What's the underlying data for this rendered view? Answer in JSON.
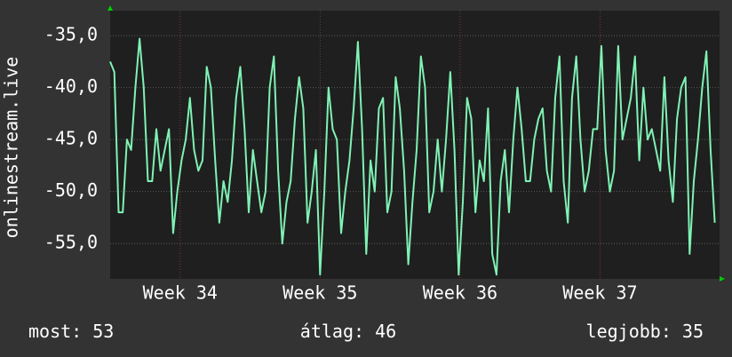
{
  "chart_data": {
    "type": "line",
    "y_label": "onlinestream.live",
    "x": [
      33.5,
      33.53,
      33.56,
      33.59,
      33.62,
      33.65,
      33.68,
      33.71,
      33.74,
      33.77,
      33.8,
      33.83,
      33.86,
      33.89,
      33.92,
      33.95,
      33.98,
      34.01,
      34.04,
      34.07,
      34.1,
      34.13,
      34.16,
      34.19,
      34.22,
      34.25,
      34.28,
      34.31,
      34.34,
      34.37,
      34.4,
      34.43,
      34.46,
      34.49,
      34.52,
      34.55,
      34.58,
      34.61,
      34.64,
      34.67,
      34.7,
      34.73,
      34.76,
      34.79,
      34.82,
      34.85,
      34.88,
      34.91,
      34.94,
      34.97,
      35,
      35.03,
      35.06,
      35.09,
      35.12,
      35.15,
      35.18,
      35.21,
      35.24,
      35.27,
      35.3,
      35.33,
      35.36,
      35.39,
      35.42,
      35.45,
      35.48,
      35.51,
      35.54,
      35.57,
      35.6,
      35.63,
      35.66,
      35.69,
      35.72,
      35.75,
      35.78,
      35.81,
      35.84,
      35.87,
      35.9,
      35.93,
      35.96,
      35.99,
      36.02,
      36.05,
      36.08,
      36.11,
      36.14,
      36.17,
      36.2,
      36.23,
      36.26,
      36.29,
      36.32,
      36.35,
      36.38,
      36.41,
      36.44,
      36.47,
      36.5,
      36.53,
      36.56,
      36.59,
      36.62,
      36.65,
      36.68,
      36.71,
      36.74,
      36.77,
      36.8,
      36.83,
      36.86,
      36.89,
      36.92,
      36.95,
      36.98,
      37.01,
      37.04,
      37.07,
      37.1,
      37.13,
      37.16,
      37.19,
      37.22,
      37.25,
      37.28,
      37.31,
      37.34,
      37.37,
      37.4,
      37.43,
      37.46,
      37.49,
      37.52,
      37.55,
      37.58,
      37.61,
      37.64,
      37.67,
      37.7,
      37.73,
      37.76,
      37.79,
      37.82
    ],
    "series": [
      {
        "color": "#7ff2b4",
        "values": [
          -37.5,
          -38.5,
          -52,
          -52,
          -45,
          -46,
          -40,
          -35.3,
          -40,
          -49,
          -49,
          -44,
          -48,
          -46,
          -44,
          -54,
          -50,
          -47,
          -45,
          -41,
          -46,
          -48,
          -47,
          -38,
          -40,
          -47,
          -53,
          -49,
          -51,
          -47,
          -41,
          -38,
          -44,
          -52,
          -46,
          -49,
          -52,
          -50,
          -40,
          -37,
          -48,
          -55,
          -51,
          -49,
          -43,
          -39,
          -42,
          -53,
          -50,
          -46,
          -58,
          -50,
          -40,
          -44,
          -45,
          -54,
          -50,
          -47,
          -42,
          -35.6,
          -44,
          -56,
          -47,
          -50,
          -42,
          -41,
          -52,
          -50,
          -39,
          -42,
          -48,
          -57,
          -51,
          -46,
          -37,
          -40,
          -52,
          -50,
          -45,
          -50,
          -45,
          -38.5,
          -46,
          -58,
          -51,
          -41,
          -43,
          -52,
          -47,
          -49,
          -42,
          -56,
          -58,
          -49,
          -46,
          -52,
          -45,
          -40,
          -44,
          -49,
          -49,
          -45,
          -43,
          -42,
          -48,
          -50,
          -41,
          -37,
          -49,
          -53,
          -41,
          -37,
          -45,
          -50,
          -48,
          -44,
          -44,
          -36,
          -46,
          -50,
          -48,
          -36,
          -45,
          -43,
          -41,
          -37,
          -47,
          -40,
          -45,
          -44,
          -46,
          -48,
          -39,
          -47,
          -51,
          -43,
          -40,
          -39,
          -56,
          -49,
          -45,
          -40,
          -36.5,
          -46,
          -53
        ]
      }
    ],
    "xlim": [
      33.5,
      37.854
    ],
    "ylim": [
      -58.4,
      -32.6
    ],
    "xticks": [
      {
        "value": 34,
        "label": "Week 34"
      },
      {
        "value": 35,
        "label": "Week 35"
      },
      {
        "value": 36,
        "label": "Week 36"
      },
      {
        "value": 37,
        "label": "Week 37"
      }
    ],
    "yticks": [
      {
        "value": -35,
        "label": "-35,0"
      },
      {
        "value": -40,
        "label": "-40,0"
      },
      {
        "value": -45,
        "label": "-45,0"
      },
      {
        "value": -50,
        "label": "-50,0"
      },
      {
        "value": -55,
        "label": "-55,0"
      }
    ],
    "grid": true
  },
  "summary": [
    {
      "label": "most:",
      "value": 53
    },
    {
      "label": "átlag:",
      "value": 46
    },
    {
      "label": "legjobb:",
      "value": 35
    }
  ]
}
